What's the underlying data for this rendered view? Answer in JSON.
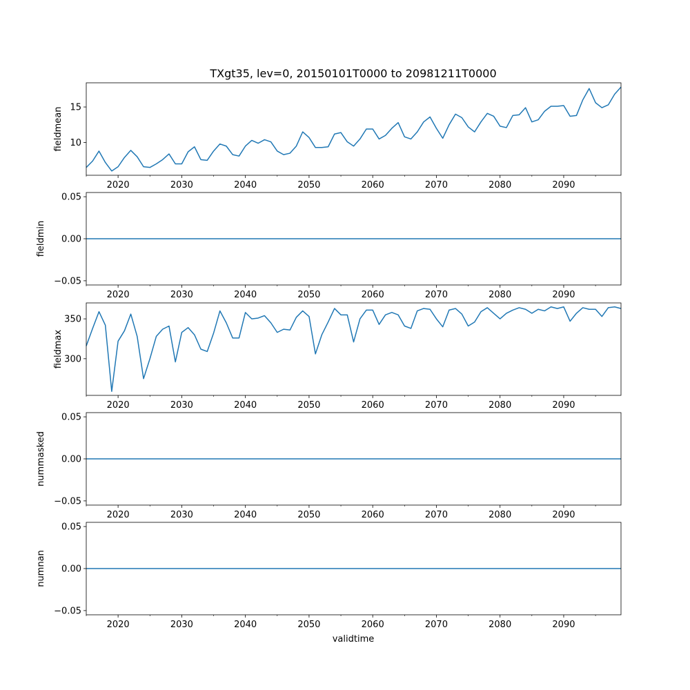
{
  "chart_data": {
    "type": "line",
    "title": "TXgt35, lev=0, 20150101T0000 to 20981211T0000",
    "xlabel": "validtime",
    "xlim": [
      2015,
      2099
    ],
    "x_ticks": [
      2020,
      2030,
      2040,
      2050,
      2060,
      2070,
      2080,
      2090
    ],
    "line_color": "#1f77b4",
    "x": [
      2015,
      2016,
      2017,
      2018,
      2019,
      2020,
      2021,
      2022,
      2023,
      2024,
      2025,
      2026,
      2027,
      2028,
      2029,
      2030,
      2031,
      2032,
      2033,
      2034,
      2035,
      2036,
      2037,
      2038,
      2039,
      2040,
      2041,
      2042,
      2043,
      2044,
      2045,
      2046,
      2047,
      2048,
      2049,
      2050,
      2051,
      2052,
      2053,
      2054,
      2055,
      2056,
      2057,
      2058,
      2059,
      2060,
      2061,
      2062,
      2063,
      2064,
      2065,
      2066,
      2067,
      2068,
      2069,
      2070,
      2071,
      2072,
      2073,
      2074,
      2075,
      2076,
      2077,
      2078,
      2079,
      2080,
      2081,
      2082,
      2083,
      2084,
      2085,
      2086,
      2087,
      2088,
      2089,
      2090,
      2091,
      2092,
      2093,
      2094,
      2095,
      2096,
      2097,
      2098,
      2099
    ],
    "panels": [
      {
        "ylabel": "fieldmean",
        "ylim": [
          5.4,
          18.4
        ],
        "y_ticks": [
          10,
          15
        ],
        "y_tick_labels": [
          "10",
          "15"
        ],
        "values": [
          6.5,
          7.4,
          8.8,
          7.2,
          6.0,
          6.6,
          7.9,
          8.9,
          8.0,
          6.6,
          6.5,
          7.0,
          7.6,
          8.4,
          7.0,
          7.0,
          8.7,
          9.4,
          7.6,
          7.5,
          8.8,
          9.8,
          9.5,
          8.3,
          8.1,
          9.5,
          10.3,
          9.9,
          10.4,
          10.1,
          8.8,
          8.3,
          8.5,
          9.5,
          11.5,
          10.7,
          9.3,
          9.3,
          9.4,
          11.2,
          11.4,
          10.1,
          9.5,
          10.5,
          11.9,
          11.9,
          10.5,
          11.0,
          12.0,
          12.8,
          10.8,
          10.5,
          11.5,
          12.9,
          13.6,
          12.0,
          10.6,
          12.5,
          14.0,
          13.5,
          12.2,
          11.5,
          12.9,
          14.1,
          13.7,
          12.3,
          12.1,
          13.8,
          13.9,
          14.9,
          12.9,
          13.2,
          14.4,
          15.1,
          15.1,
          15.2,
          13.7,
          13.8,
          16.0,
          17.6,
          15.6,
          14.9,
          15.3,
          16.8,
          17.8
        ]
      },
      {
        "ylabel": "fieldmin",
        "ylim": [
          -0.055,
          0.055
        ],
        "y_ticks": [
          -0.05,
          0.0,
          0.05
        ],
        "y_tick_labels": [
          "−0.05",
          "0.00",
          "0.05"
        ],
        "values": [
          0,
          0,
          0,
          0,
          0,
          0,
          0,
          0,
          0,
          0,
          0,
          0,
          0,
          0,
          0,
          0,
          0,
          0,
          0,
          0,
          0,
          0,
          0,
          0,
          0,
          0,
          0,
          0,
          0,
          0,
          0,
          0,
          0,
          0,
          0,
          0,
          0,
          0,
          0,
          0,
          0,
          0,
          0,
          0,
          0,
          0,
          0,
          0,
          0,
          0,
          0,
          0,
          0,
          0,
          0,
          0,
          0,
          0,
          0,
          0,
          0,
          0,
          0,
          0,
          0,
          0,
          0,
          0,
          0,
          0,
          0,
          0,
          0,
          0,
          0,
          0,
          0,
          0,
          0,
          0,
          0,
          0,
          0,
          0,
          0
        ]
      },
      {
        "ylabel": "fieldmax",
        "ylim": [
          254,
          370
        ],
        "y_ticks": [
          300,
          350
        ],
        "y_tick_labels": [
          "300",
          "350"
        ],
        "values": [
          316,
          338,
          359,
          342,
          259,
          322,
          335,
          356,
          328,
          275,
          300,
          328,
          337,
          341,
          296,
          333,
          339,
          330,
          312,
          309,
          332,
          360,
          345,
          326,
          326,
          358,
          350,
          351,
          354,
          345,
          333,
          337,
          336,
          352,
          360,
          353,
          306,
          330,
          346,
          363,
          355,
          355,
          321,
          350,
          361,
          361,
          343,
          355,
          358,
          355,
          341,
          338,
          360,
          363,
          362,
          350,
          340,
          361,
          363,
          356,
          341,
          346,
          359,
          364,
          357,
          350,
          357,
          361,
          364,
          362,
          357,
          362,
          360,
          365,
          363,
          365,
          347,
          357,
          364,
          362,
          362,
          353,
          364,
          365,
          363
        ]
      },
      {
        "ylabel": "nummasked",
        "ylim": [
          -0.055,
          0.055
        ],
        "y_ticks": [
          -0.05,
          0.0,
          0.05
        ],
        "y_tick_labels": [
          "−0.05",
          "0.00",
          "0.05"
        ],
        "values": [
          0,
          0,
          0,
          0,
          0,
          0,
          0,
          0,
          0,
          0,
          0,
          0,
          0,
          0,
          0,
          0,
          0,
          0,
          0,
          0,
          0,
          0,
          0,
          0,
          0,
          0,
          0,
          0,
          0,
          0,
          0,
          0,
          0,
          0,
          0,
          0,
          0,
          0,
          0,
          0,
          0,
          0,
          0,
          0,
          0,
          0,
          0,
          0,
          0,
          0,
          0,
          0,
          0,
          0,
          0,
          0,
          0,
          0,
          0,
          0,
          0,
          0,
          0,
          0,
          0,
          0,
          0,
          0,
          0,
          0,
          0,
          0,
          0,
          0,
          0,
          0,
          0,
          0,
          0,
          0,
          0,
          0,
          0,
          0,
          0
        ]
      },
      {
        "ylabel": "numnan",
        "ylim": [
          -0.055,
          0.055
        ],
        "y_ticks": [
          -0.05,
          0.0,
          0.05
        ],
        "y_tick_labels": [
          "−0.05",
          "0.00",
          "0.05"
        ],
        "values": [
          0,
          0,
          0,
          0,
          0,
          0,
          0,
          0,
          0,
          0,
          0,
          0,
          0,
          0,
          0,
          0,
          0,
          0,
          0,
          0,
          0,
          0,
          0,
          0,
          0,
          0,
          0,
          0,
          0,
          0,
          0,
          0,
          0,
          0,
          0,
          0,
          0,
          0,
          0,
          0,
          0,
          0,
          0,
          0,
          0,
          0,
          0,
          0,
          0,
          0,
          0,
          0,
          0,
          0,
          0,
          0,
          0,
          0,
          0,
          0,
          0,
          0,
          0,
          0,
          0,
          0,
          0,
          0,
          0,
          0,
          0,
          0,
          0,
          0,
          0,
          0,
          0,
          0,
          0,
          0,
          0,
          0,
          0,
          0,
          0
        ]
      }
    ]
  }
}
